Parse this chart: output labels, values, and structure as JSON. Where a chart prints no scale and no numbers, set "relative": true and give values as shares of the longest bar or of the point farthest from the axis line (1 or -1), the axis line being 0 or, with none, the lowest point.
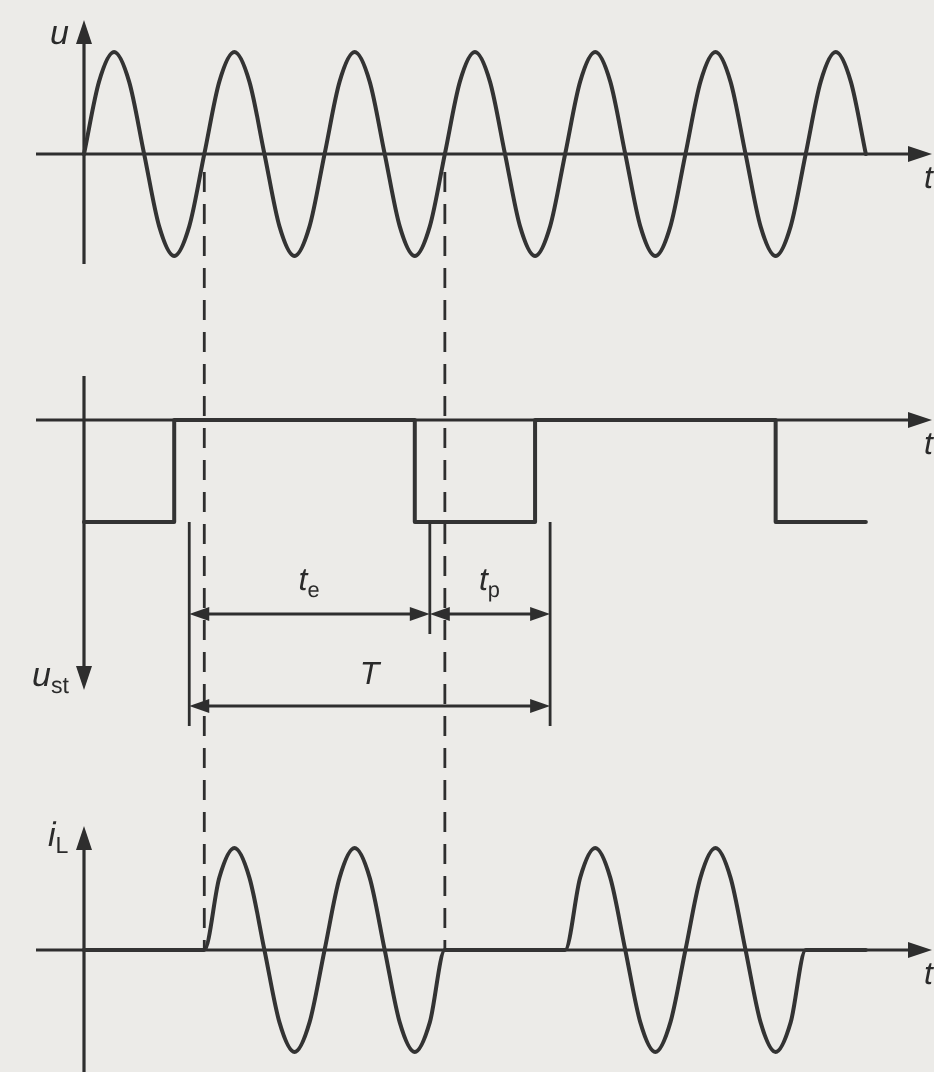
{
  "chart_data": [
    {
      "type": "line",
      "relative": true,
      "ylabel": "u",
      "xlabel": "t",
      "categories": [
        null,
        null,
        null,
        null,
        null,
        null,
        null,
        null,
        null,
        null,
        null,
        null,
        null,
        null,
        null,
        null,
        null,
        null,
        null,
        null,
        null,
        null,
        null,
        null,
        null,
        null,
        null,
        null,
        null,
        null,
        null,
        null,
        null,
        null,
        null,
        null,
        null,
        null,
        null,
        null,
        null,
        null,
        null,
        null,
        null,
        null,
        null,
        null,
        null,
        null,
        null,
        null,
        null,
        null,
        null,
        null,
        null
      ],
      "values": [
        0,
        0.71,
        1,
        0.71,
        0,
        -0.71,
        -1,
        -0.71,
        0,
        0.71,
        1,
        0.71,
        0,
        -0.71,
        -1,
        -0.71,
        0,
        0.71,
        1,
        0.71,
        0,
        -0.71,
        -1,
        -0.71,
        0,
        0.71,
        1,
        0.71,
        0,
        -0.71,
        -1,
        -0.71,
        0,
        0.71,
        1,
        0.71,
        0,
        -0.71,
        -1,
        -0.71,
        0,
        0.71,
        1,
        0.71,
        0,
        -0.71,
        -1,
        -0.71,
        0,
        0.71,
        1,
        0.71,
        0,
        null,
        null,
        null,
        null
      ],
      "color": "#333333",
      "marker": "none",
      "line_style": "solid",
      "legend": false,
      "tick_labels": false
    },
    {
      "type": "step",
      "relative": true,
      "ylabel": "u$_{st}$",
      "xlabel": "t",
      "categories": [
        null,
        null,
        null,
        null,
        null,
        null,
        null,
        null,
        null,
        null,
        null,
        null,
        null,
        null,
        null,
        null,
        null,
        null,
        null,
        null,
        null,
        null,
        null,
        null,
        null,
        null,
        null,
        null,
        null,
        null,
        null,
        null,
        null,
        null,
        null,
        null,
        null,
        null,
        null,
        null,
        null,
        null,
        null,
        null,
        null,
        null,
        null,
        null,
        null,
        null,
        null,
        null,
        null,
        null,
        null,
        null,
        null
      ],
      "values": [
        -1,
        -1,
        -1,
        -1,
        -1,
        -1,
        -1,
        0,
        0,
        0,
        0,
        0,
        0,
        0,
        0,
        0,
        0,
        0,
        0,
        0,
        0,
        0,
        0,
        -1,
        -1,
        -1,
        -1,
        -1,
        -1,
        -1,
        -1,
        0,
        0,
        0,
        0,
        0,
        0,
        0,
        0,
        0,
        0,
        0,
        0,
        0,
        0,
        0,
        0,
        -1,
        -1,
        -1,
        -1,
        -1,
        -1,
        null,
        null,
        null,
        null
      ],
      "color": "#333333",
      "annotations": [
        "t$_{e}$",
        "t$_{p}$",
        "T"
      ],
      "marker": "none",
      "line_style": "solid",
      "legend": false,
      "tick_labels": false
    },
    {
      "type": "line",
      "relative": true,
      "ylabel": "i$_{L}$",
      "xlabel": "t",
      "categories": [
        null,
        null,
        null,
        null,
        null,
        null,
        null,
        null,
        null,
        null,
        null,
        null,
        null,
        null,
        null,
        null,
        null,
        null,
        null,
        null,
        null,
        null,
        null,
        null,
        null,
        null,
        null,
        null,
        null,
        null,
        null,
        null,
        null,
        null,
        null,
        null,
        null,
        null,
        null,
        null,
        null,
        null,
        null,
        null,
        null,
        null,
        null,
        null,
        null,
        null,
        null,
        null,
        null,
        null,
        null,
        null,
        null
      ],
      "values": [
        0,
        0,
        0,
        0,
        0,
        0,
        0,
        0,
        0,
        0.71,
        1,
        0.71,
        0,
        -0.71,
        -1,
        -0.71,
        0,
        0.71,
        1,
        0.71,
        0,
        -0.71,
        -1,
        -0.71,
        0,
        0,
        0,
        0,
        0,
        0,
        0,
        0,
        0,
        0.71,
        1,
        0.71,
        0,
        -0.71,
        -1,
        -0.71,
        0,
        0.71,
        1,
        0.71,
        0,
        -0.71,
        -1,
        -0.71,
        0,
        0,
        0,
        0,
        0,
        null,
        null,
        null,
        null
      ],
      "color": "#333333",
      "marker": "none",
      "line_style": "solid",
      "legend": false,
      "tick_labels": false
    }
  ]
}
